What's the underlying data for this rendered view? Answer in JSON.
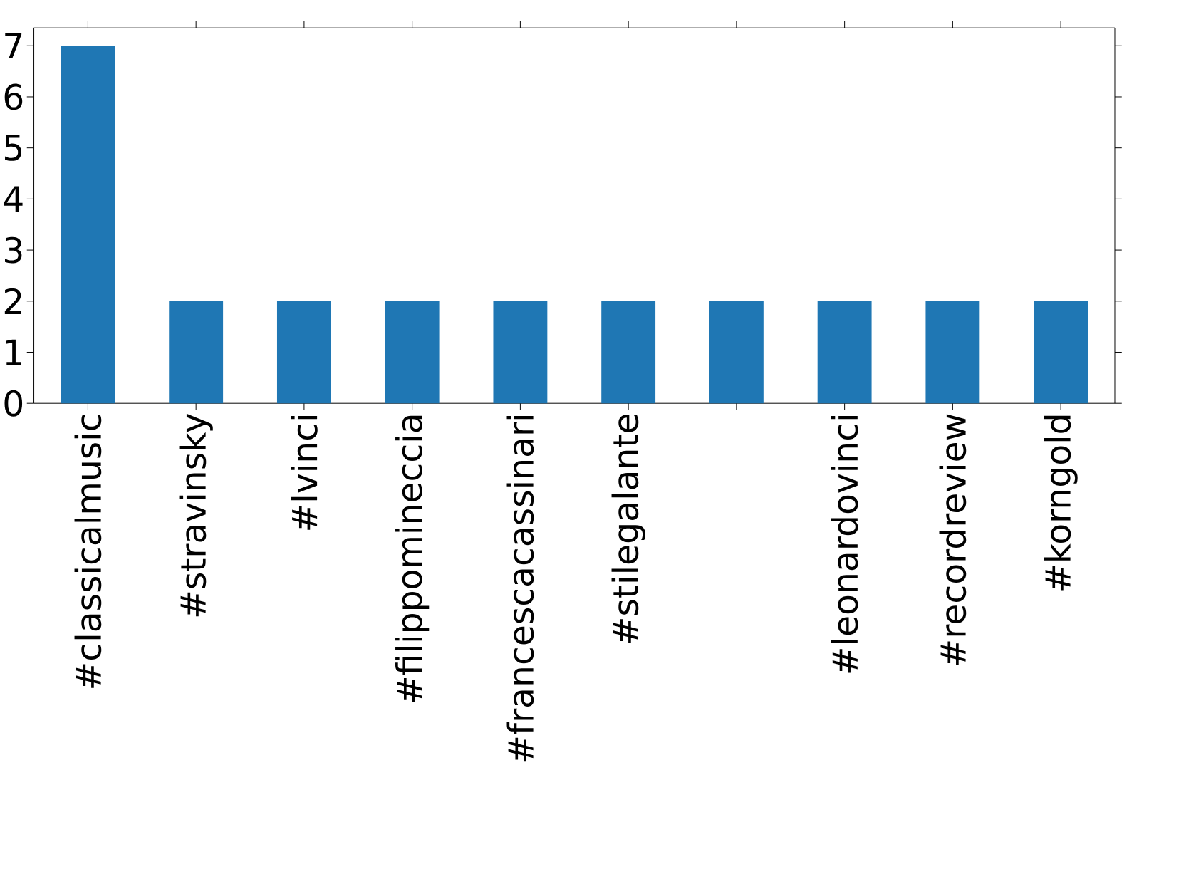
{
  "chart_data": {
    "type": "bar",
    "categories": [
      "#classicalmusic",
      "#stravinsky",
      "#lvinci",
      "#filippomineccia",
      "#francescacassinari",
      "#stilegalante",
      null,
      "#leonardovinci",
      "#recordreview",
      "#korngold"
    ],
    "values": [
      7,
      2,
      2,
      2,
      2,
      2,
      2,
      2,
      2,
      2
    ],
    "color": "#1f77b4",
    "ylim": [
      0,
      7.35
    ],
    "yticks": [
      0,
      1,
      2,
      3,
      4,
      5,
      6,
      7
    ]
  }
}
